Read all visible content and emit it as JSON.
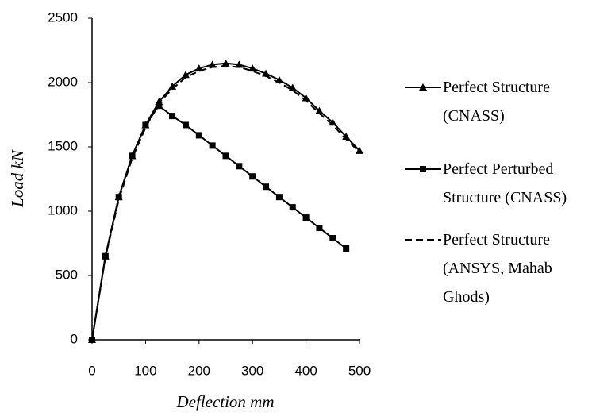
{
  "chart_data": {
    "type": "line",
    "x_label": "Deflection mm",
    "y_label": "Load kN",
    "x": [
      0,
      25,
      50,
      75,
      100,
      125,
      150,
      175,
      200,
      225,
      250,
      275,
      300,
      325,
      350,
      375,
      400,
      425,
      450,
      475,
      500
    ],
    "series": [
      {
        "name": "Perfect Structure (CNASS)",
        "color": "#000000",
        "marker": "triangle",
        "line_style": "solid",
        "values": [
          0,
          650,
          1110,
          1430,
          1670,
          1850,
          1970,
          2060,
          2110,
          2140,
          2150,
          2140,
          2110,
          2070,
          2020,
          1960,
          1880,
          1780,
          1690,
          1580,
          1470
        ]
      },
      {
        "name": "Perfect Perturbed Structure (CNASS)",
        "color": "#000000",
        "marker": "square",
        "line_style": "solid",
        "values": [
          0,
          650,
          1110,
          1430,
          1670,
          1820,
          1740,
          1670,
          1590,
          1510,
          1430,
          1350,
          1270,
          1190,
          1110,
          1030,
          950,
          870,
          790,
          710,
          null
        ]
      },
      {
        "name": "Perfect Structure (ANSYS, Mahab Ghods)",
        "color": "#000000",
        "marker": "none",
        "line_style": "dashed",
        "values": [
          0,
          640,
          1090,
          1410,
          1650,
          1840,
          1950,
          2040,
          2090,
          2120,
          2130,
          2120,
          2090,
          2050,
          2000,
          1940,
          1860,
          1760,
          1670,
          1560,
          1460
        ]
      }
    ],
    "xlim": [
      0,
      500
    ],
    "xticks": [
      0,
      100,
      200,
      300,
      400,
      500
    ],
    "ylim": [
      0,
      2500
    ],
    "yticks": [
      0,
      500,
      1000,
      1500,
      2000,
      2500
    ],
    "grid": false,
    "legend": "right"
  }
}
